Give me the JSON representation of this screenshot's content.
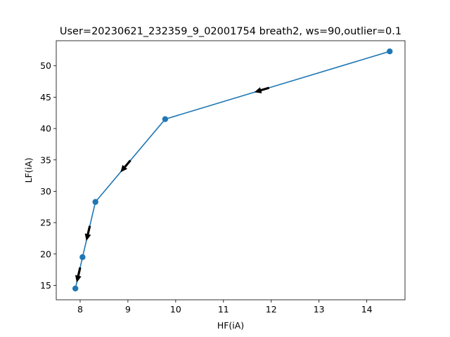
{
  "chart_data": {
    "type": "line",
    "title": "User=20230621_232359_9_02001754 breath2, ws=90,outlier=0.1",
    "xlabel": "HF(iA)",
    "ylabel": "LF(iA)",
    "xlim": [
      7.5,
      14.8
    ],
    "ylim": [
      12.7,
      54.0
    ],
    "xticks": [
      8,
      9,
      10,
      11,
      12,
      13,
      14
    ],
    "yticks": [
      15,
      20,
      25,
      30,
      35,
      40,
      45,
      50
    ],
    "grid": false,
    "series": [
      {
        "x": [
          14.48,
          9.78,
          8.32,
          8.05,
          7.9
        ],
        "y": [
          52.3,
          41.5,
          28.3,
          19.5,
          14.5
        ],
        "color": "#1f77b4",
        "marker": "circle",
        "arrows": "direction of travel between consecutive points",
        "arrow_color": "#000000"
      }
    ]
  }
}
